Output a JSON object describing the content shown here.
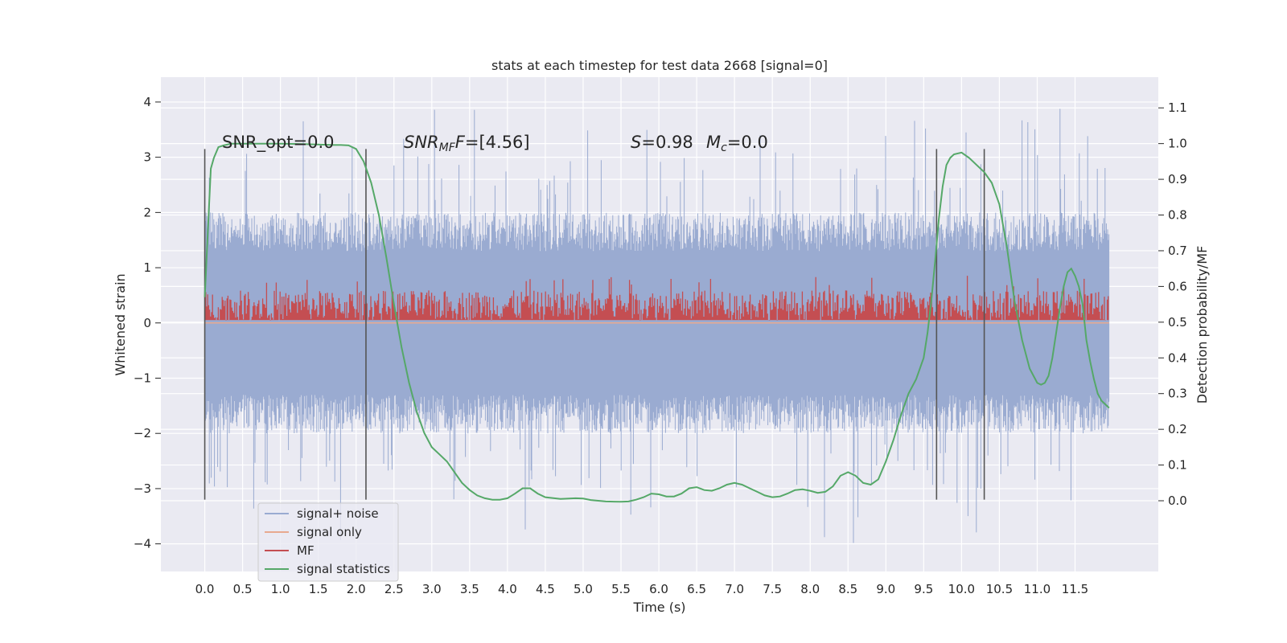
{
  "chart_data": {
    "type": "line",
    "title": "stats at each timestep for test data 2668 [signal=0]",
    "xlabel": "Time (s)",
    "ylabel": "Whitened strain",
    "y2label": "Detection probability/MF",
    "xlim": [
      -0.58,
      12.6
    ],
    "ylim": [
      -4.5,
      4.45
    ],
    "y2lim": [
      -0.198,
      1.186
    ],
    "x_ticks": [
      0.0,
      0.5,
      1.0,
      1.5,
      2.0,
      2.5,
      3.0,
      3.5,
      4.0,
      4.5,
      5.0,
      5.5,
      6.0,
      6.5,
      7.0,
      7.5,
      8.0,
      8.5,
      9.0,
      9.5,
      10.0,
      10.5,
      11.0,
      11.5
    ],
    "x_tick_labels": [
      "0.0",
      "0.5",
      "1.0",
      "1.5",
      "2.0",
      "2.5",
      "3.0",
      "3.5",
      "4.0",
      "4.5",
      "5.0",
      "5.5",
      "6.0",
      "6.5",
      "7.0",
      "7.5",
      "8.0",
      "8.5",
      "9.0",
      "9.5",
      "10.0",
      "10.5",
      "11.0",
      "11.5"
    ],
    "y_ticks": [
      4,
      3,
      2,
      1,
      0,
      -1,
      -2,
      -3,
      -4
    ],
    "y_tick_labels": [
      "4",
      "3",
      "2",
      "1",
      "0",
      "−1",
      "−2",
      "−3",
      "−4"
    ],
    "y2_ticks": [
      1.1,
      1.0,
      0.9,
      0.8,
      0.7,
      0.6,
      0.5,
      0.4,
      0.3,
      0.2,
      0.1,
      0.0
    ],
    "y2_tick_labels": [
      "1.1",
      "1.0",
      "0.9",
      "0.8",
      "0.7",
      "0.6",
      "0.5",
      "0.4",
      "0.3",
      "0.2",
      "0.1",
      "0.0"
    ],
    "grid": true,
    "legend_position": "lower-left",
    "annotations": {
      "snr_opt": "SNR_opt=0.0",
      "snr_mf_name": "SNR",
      "snr_mf_sub": "MF",
      "snr_mf_value": "=[4.56]",
      "s_name": "S",
      "s_value": "=0.98",
      "mc_name": "M",
      "mc_sub": "c",
      "mc_value": "=0.0"
    },
    "vlines": {
      "x": [
        0.0,
        2.13,
        9.67,
        10.3
      ],
      "ymin": -3.2,
      "ymax": 3.15,
      "color": "#555555"
    },
    "series": [
      {
        "name": "signal+ noise",
        "color": "#9aabd1",
        "description_range": [
          0.0,
          11.95
        ],
        "spread": 1.3,
        "spike_max": 4.0
      },
      {
        "name": "signal only",
        "color": "#e8a98f",
        "x": [
          0.0,
          11.95
        ],
        "y": [
          0.0,
          0.0
        ]
      },
      {
        "name": "MF",
        "color": "#c44e52",
        "base": 0.05,
        "range": [
          0.0,
          11.95
        ],
        "mean_y2": 0.53,
        "spread_y2": 0.07,
        "spike_max_y2": 0.63
      },
      {
        "name": "signal statistics",
        "color": "#55a868",
        "axis": "right",
        "x": [
          0.0,
          0.04,
          0.08,
          0.12,
          0.18,
          0.25,
          0.35,
          0.5,
          0.8,
          1.0,
          1.4,
          1.7,
          1.8,
          1.9,
          2.0,
          2.1,
          2.2,
          2.3,
          2.4,
          2.5,
          2.6,
          2.7,
          2.8,
          2.9,
          3.0,
          3.1,
          3.2,
          3.3,
          3.4,
          3.5,
          3.6,
          3.7,
          3.8,
          3.9,
          4.0,
          4.1,
          4.2,
          4.3,
          4.4,
          4.5,
          4.7,
          4.9,
          5.0,
          5.1,
          5.3,
          5.5,
          5.6,
          5.7,
          5.8,
          5.9,
          6.0,
          6.1,
          6.2,
          6.3,
          6.4,
          6.5,
          6.6,
          6.7,
          6.8,
          6.9,
          7.0,
          7.1,
          7.2,
          7.3,
          7.4,
          7.5,
          7.6,
          7.7,
          7.8,
          7.9,
          8.0,
          8.1,
          8.2,
          8.3,
          8.4,
          8.5,
          8.6,
          8.7,
          8.8,
          8.9,
          9.0,
          9.1,
          9.2,
          9.3,
          9.4,
          9.5,
          9.55,
          9.6,
          9.65,
          9.7,
          9.75,
          9.8,
          9.85,
          9.9,
          10.0,
          10.1,
          10.2,
          10.3,
          10.4,
          10.5,
          10.6,
          10.7,
          10.8,
          10.9,
          11.0,
          11.05,
          11.1,
          11.15,
          11.2,
          11.25,
          11.3,
          11.35,
          11.4,
          11.45,
          11.5,
          11.55,
          11.6,
          11.65,
          11.7,
          11.75,
          11.8,
          11.85,
          11.9,
          11.95
        ],
        "y": [
          0.57,
          0.75,
          0.93,
          0.96,
          0.99,
          0.995,
          1.0,
          1.0,
          1.0,
          1.0,
          0.998,
          0.996,
          0.996,
          0.995,
          0.985,
          0.95,
          0.89,
          0.8,
          0.68,
          0.55,
          0.43,
          0.33,
          0.25,
          0.19,
          0.15,
          0.13,
          0.11,
          0.08,
          0.05,
          0.03,
          0.015,
          0.007,
          0.003,
          0.003,
          0.007,
          0.02,
          0.035,
          0.035,
          0.02,
          0.01,
          0.005,
          0.007,
          0.006,
          0.002,
          -0.002,
          -0.003,
          -0.002,
          0.003,
          0.01,
          0.02,
          0.018,
          0.012,
          0.012,
          0.02,
          0.035,
          0.038,
          0.03,
          0.028,
          0.035,
          0.045,
          0.05,
          0.045,
          0.035,
          0.025,
          0.015,
          0.01,
          0.012,
          0.02,
          0.03,
          0.032,
          0.028,
          0.022,
          0.025,
          0.04,
          0.07,
          0.08,
          0.07,
          0.05,
          0.045,
          0.06,
          0.11,
          0.17,
          0.24,
          0.3,
          0.34,
          0.4,
          0.47,
          0.56,
          0.67,
          0.79,
          0.88,
          0.94,
          0.96,
          0.97,
          0.975,
          0.96,
          0.94,
          0.92,
          0.89,
          0.83,
          0.71,
          0.56,
          0.45,
          0.37,
          0.33,
          0.325,
          0.33,
          0.35,
          0.4,
          0.47,
          0.54,
          0.6,
          0.64,
          0.65,
          0.63,
          0.6,
          0.55,
          0.45,
          0.39,
          0.34,
          0.3,
          0.28,
          0.27,
          0.26
        ]
      }
    ]
  }
}
